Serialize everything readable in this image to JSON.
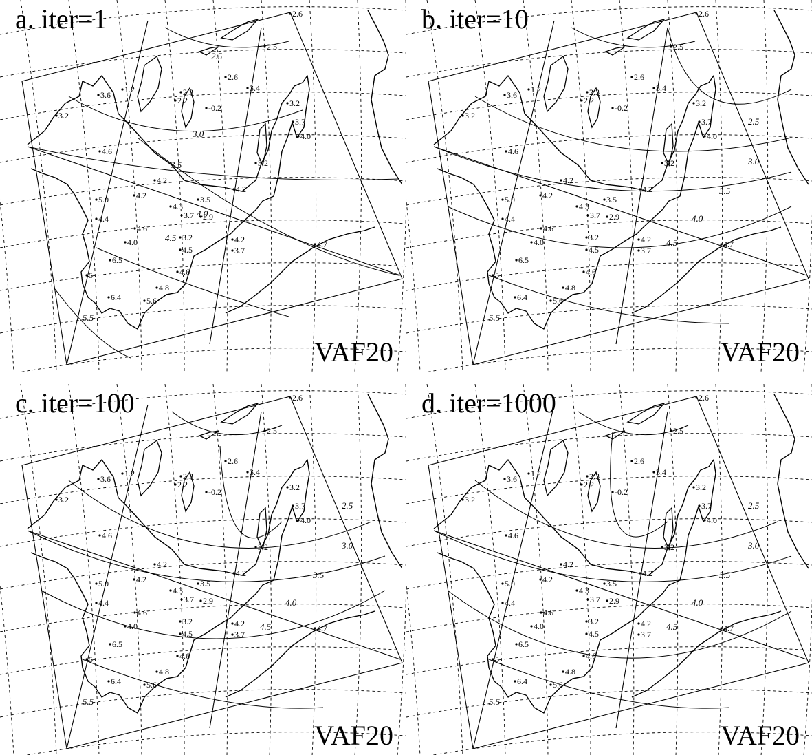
{
  "figure": {
    "tag": "VAF20",
    "panels": [
      {
        "title": "a. iter=1"
      },
      {
        "title": "b. iter=10"
      },
      {
        "title": "c. iter=100"
      },
      {
        "title": "d. iter=1000"
      }
    ]
  },
  "stations": [
    {
      "v": "2.6"
    },
    {
      "v": "2.5"
    },
    {
      "v": "3.2"
    },
    {
      "v": "1.2"
    },
    {
      "v": "3.6"
    },
    {
      "v": "2.2"
    },
    {
      "v": "2.3"
    },
    {
      "v": "-0.2"
    },
    {
      "v": "2.6"
    },
    {
      "v": "3.4"
    },
    {
      "v": "3.2"
    },
    {
      "v": "3.7"
    },
    {
      "v": "4.0"
    },
    {
      "v": "4.6"
    },
    {
      "v": "3.2"
    },
    {
      "v": "4.2"
    },
    {
      "v": "4.2"
    },
    {
      "v": "5.0"
    },
    {
      "v": "4.3"
    },
    {
      "v": "3.5"
    },
    {
      "v": "4.2"
    },
    {
      "v": "3.7"
    },
    {
      "v": "2.9"
    },
    {
      "v": "4.4"
    },
    {
      "v": "4.6"
    },
    {
      "v": "4.0"
    },
    {
      "v": "3.2"
    },
    {
      "v": "4.2"
    },
    {
      "v": "4.5"
    },
    {
      "v": "3.7"
    },
    {
      "v": "4.7"
    },
    {
      "v": "6.5"
    },
    {
      "v": "4.6"
    },
    {
      "v": "5"
    },
    {
      "v": "4.8"
    },
    {
      "v": "6.4"
    },
    {
      "v": "5.6"
    }
  ],
  "contour_labels": [
    {
      "v": "2.5"
    },
    {
      "v": "3.0"
    },
    {
      "v": "3.5"
    },
    {
      "v": "4.0"
    },
    {
      "v": "4.5"
    },
    {
      "v": "5.5"
    }
  ]
}
